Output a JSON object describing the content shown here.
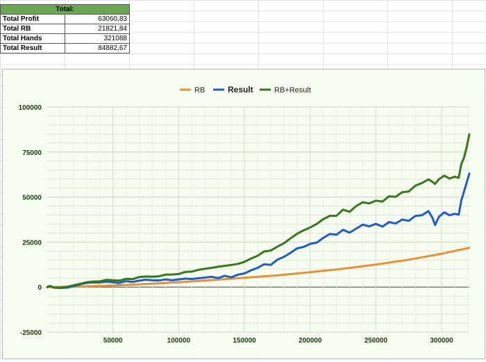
{
  "summary": {
    "header": "Total:",
    "rows": [
      {
        "label": "Total Profit",
        "value": "63060,83"
      },
      {
        "label": "Total RB",
        "value": "21821,84"
      },
      {
        "label": "Total Hands",
        "value": "321088"
      },
      {
        "label": "Total Result",
        "value": "84882,67"
      }
    ]
  },
  "colors": {
    "rb": "#e69138",
    "result": "#1c5dc8",
    "rb_result": "#38761d",
    "plot_bg": "#f7fdf0",
    "header_green": "#6aa84f"
  },
  "chart_data": {
    "type": "line",
    "legend_position": "top",
    "xlabel": "",
    "ylabel": "",
    "xlim": [
      0,
      321088
    ],
    "ylim": [
      -25000,
      100000
    ],
    "x_ticks": [
      "50000",
      "100000",
      "150000",
      "200000",
      "250000",
      "300000"
    ],
    "y_ticks": [
      "100000",
      "75000",
      "50000",
      "25000",
      "0",
      "-25000"
    ],
    "grid": true,
    "series": [
      {
        "name": "RB",
        "key": "rb",
        "points": [
          [
            0,
            0
          ],
          [
            25000,
            300
          ],
          [
            50000,
            900
          ],
          [
            75000,
            1700
          ],
          [
            100000,
            2700
          ],
          [
            125000,
            3900
          ],
          [
            150000,
            5200
          ],
          [
            175000,
            6500
          ],
          [
            200000,
            8300
          ],
          [
            225000,
            10200
          ],
          [
            250000,
            12500
          ],
          [
            275000,
            15200
          ],
          [
            300000,
            18500
          ],
          [
            321088,
            21822
          ]
        ]
      },
      {
        "name": "Result",
        "key": "result",
        "points": [
          [
            0,
            0
          ],
          [
            2000,
            600
          ],
          [
            5000,
            -300
          ],
          [
            10000,
            -500
          ],
          [
            15000,
            -300
          ],
          [
            20000,
            500
          ],
          [
            25000,
            1500
          ],
          [
            30000,
            2300
          ],
          [
            35000,
            2600
          ],
          [
            40000,
            2500
          ],
          [
            45000,
            3000
          ],
          [
            50000,
            2700
          ],
          [
            55000,
            2300
          ],
          [
            60000,
            3300
          ],
          [
            65000,
            2900
          ],
          [
            70000,
            3600
          ],
          [
            75000,
            4100
          ],
          [
            80000,
            3800
          ],
          [
            85000,
            3700
          ],
          [
            90000,
            4200
          ],
          [
            95000,
            3800
          ],
          [
            100000,
            4300
          ],
          [
            105000,
            4700
          ],
          [
            110000,
            4500
          ],
          [
            115000,
            4900
          ],
          [
            120000,
            5300
          ],
          [
            125000,
            5700
          ],
          [
            130000,
            5000
          ],
          [
            135000,
            6300
          ],
          [
            140000,
            5400
          ],
          [
            145000,
            6900
          ],
          [
            150000,
            7600
          ],
          [
            155000,
            9300
          ],
          [
            160000,
            10700
          ],
          [
            165000,
            12700
          ],
          [
            170000,
            12300
          ],
          [
            175000,
            15200
          ],
          [
            180000,
            16800
          ],
          [
            185000,
            19000
          ],
          [
            190000,
            21500
          ],
          [
            195000,
            22300
          ],
          [
            200000,
            24000
          ],
          [
            205000,
            24700
          ],
          [
            210000,
            27300
          ],
          [
            215000,
            29500
          ],
          [
            220000,
            29100
          ],
          [
            225000,
            31800
          ],
          [
            230000,
            30200
          ],
          [
            235000,
            32500
          ],
          [
            240000,
            34700
          ],
          [
            245000,
            33700
          ],
          [
            250000,
            35100
          ],
          [
            255000,
            33600
          ],
          [
            260000,
            36100
          ],
          [
            265000,
            35300
          ],
          [
            270000,
            37500
          ],
          [
            275000,
            36800
          ],
          [
            280000,
            39500
          ],
          [
            285000,
            39900
          ],
          [
            290000,
            42200
          ],
          [
            293000,
            38500
          ],
          [
            295000,
            34500
          ],
          [
            298000,
            39100
          ],
          [
            302000,
            41500
          ],
          [
            306000,
            39900
          ],
          [
            310000,
            40700
          ],
          [
            313000,
            40200
          ],
          [
            315000,
            48200
          ],
          [
            317000,
            53000
          ],
          [
            319000,
            57800
          ],
          [
            321088,
            63061
          ]
        ]
      },
      {
        "name": "RB+Result",
        "key": "rb_result",
        "points": [
          [
            0,
            0
          ],
          [
            2000,
            700
          ],
          [
            5000,
            -200
          ],
          [
            10000,
            -300
          ],
          [
            15000,
            200
          ],
          [
            20000,
            1000
          ],
          [
            25000,
            1800
          ],
          [
            30000,
            2700
          ],
          [
            35000,
            3100
          ],
          [
            40000,
            3200
          ],
          [
            45000,
            4000
          ],
          [
            50000,
            3800
          ],
          [
            55000,
            3600
          ],
          [
            60000,
            4600
          ],
          [
            65000,
            4400
          ],
          [
            70000,
            5600
          ],
          [
            75000,
            5900
          ],
          [
            80000,
            5800
          ],
          [
            85000,
            6000
          ],
          [
            90000,
            6900
          ],
          [
            95000,
            7000
          ],
          [
            100000,
            7300
          ],
          [
            105000,
            8400
          ],
          [
            110000,
            8600
          ],
          [
            115000,
            9600
          ],
          [
            120000,
            10200
          ],
          [
            125000,
            10700
          ],
          [
            130000,
            11300
          ],
          [
            135000,
            11800
          ],
          [
            140000,
            12300
          ],
          [
            145000,
            12900
          ],
          [
            150000,
            14000
          ],
          [
            155000,
            15800
          ],
          [
            160000,
            17400
          ],
          [
            165000,
            19800
          ],
          [
            170000,
            20300
          ],
          [
            175000,
            22400
          ],
          [
            180000,
            24300
          ],
          [
            185000,
            27000
          ],
          [
            190000,
            29600
          ],
          [
            195000,
            31500
          ],
          [
            200000,
            33100
          ],
          [
            205000,
            35100
          ],
          [
            210000,
            37700
          ],
          [
            215000,
            39600
          ],
          [
            220000,
            39600
          ],
          [
            225000,
            43000
          ],
          [
            230000,
            41800
          ],
          [
            235000,
            45000
          ],
          [
            240000,
            47100
          ],
          [
            245000,
            46500
          ],
          [
            250000,
            48000
          ],
          [
            255000,
            47500
          ],
          [
            260000,
            50400
          ],
          [
            265000,
            50100
          ],
          [
            270000,
            52700
          ],
          [
            275000,
            53100
          ],
          [
            280000,
            56300
          ],
          [
            285000,
            57800
          ],
          [
            290000,
            59800
          ],
          [
            293000,
            58500
          ],
          [
            295000,
            57300
          ],
          [
            298000,
            59900
          ],
          [
            302000,
            61900
          ],
          [
            306000,
            60300
          ],
          [
            310000,
            61300
          ],
          [
            313000,
            60700
          ],
          [
            315000,
            68400
          ],
          [
            317000,
            71800
          ],
          [
            319000,
            77400
          ],
          [
            321088,
            84883
          ]
        ]
      }
    ]
  }
}
